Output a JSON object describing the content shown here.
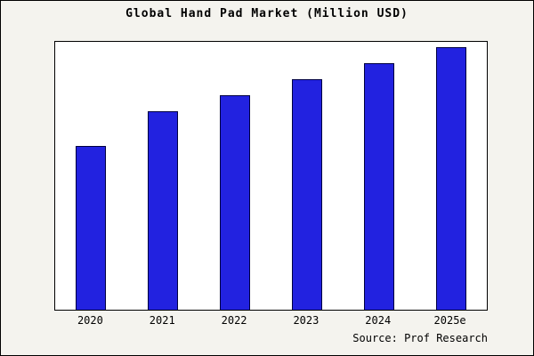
{
  "title": "Global Hand Pad Market (Million USD)",
  "source": "Source: Prof Research",
  "colors": {
    "bar_fill": "#2222e0",
    "bar_edge": "#000040",
    "figure_background": "#f4f3ee",
    "plot_background": "#ffffff"
  },
  "chart_data": {
    "type": "bar",
    "title": "Global Hand Pad Market (Million USD)",
    "categories": [
      "2020",
      "2021",
      "2022",
      "2023",
      "2024",
      "2025e"
    ],
    "values": [
      61,
      74,
      80,
      86,
      92,
      98
    ],
    "xlabel": "",
    "ylabel": "",
    "ylim": [
      0,
      100
    ],
    "grid": false,
    "legend": false,
    "y_axis_ticks_visible": false,
    "annotation": "Source: Prof Research"
  }
}
